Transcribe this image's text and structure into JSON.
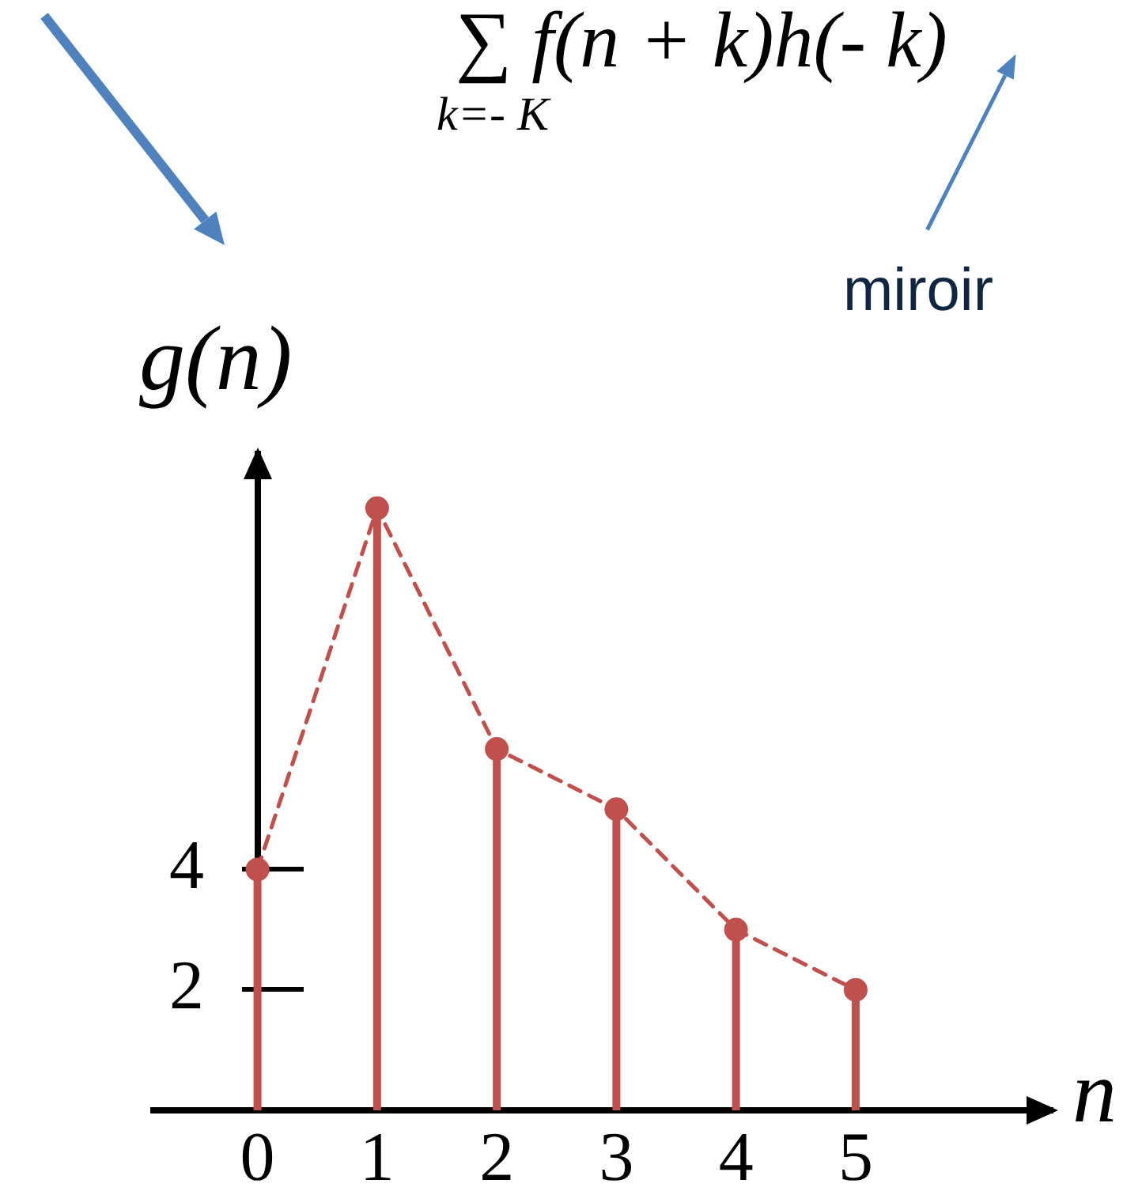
{
  "chart_data": {
    "type": "lollipop",
    "x": [
      0,
      1,
      2,
      3,
      4,
      5
    ],
    "series": [
      {
        "color": "#c0504d",
        "values": [
          4,
          10,
          6,
          5,
          3,
          2
        ],
        "marker": "circle"
      },
      {
        "type": "line",
        "color": "#c0504d",
        "values": [
          4,
          10,
          6,
          5,
          3,
          2
        ],
        "line_style": "dashed",
        "marker": "none"
      }
    ],
    "xlim": [
      -0.87,
      6.64
    ],
    "ylim": [
      0,
      10.9
    ],
    "xticks": [
      0,
      1,
      2,
      3,
      4,
      5
    ],
    "yticks": [
      2,
      4
    ],
    "xlabel": "n",
    "ylabel": "g(n)",
    "annotations": [
      "∑ f(n + k)h(- k)",
      "k=- K",
      "miroir"
    ]
  }
}
